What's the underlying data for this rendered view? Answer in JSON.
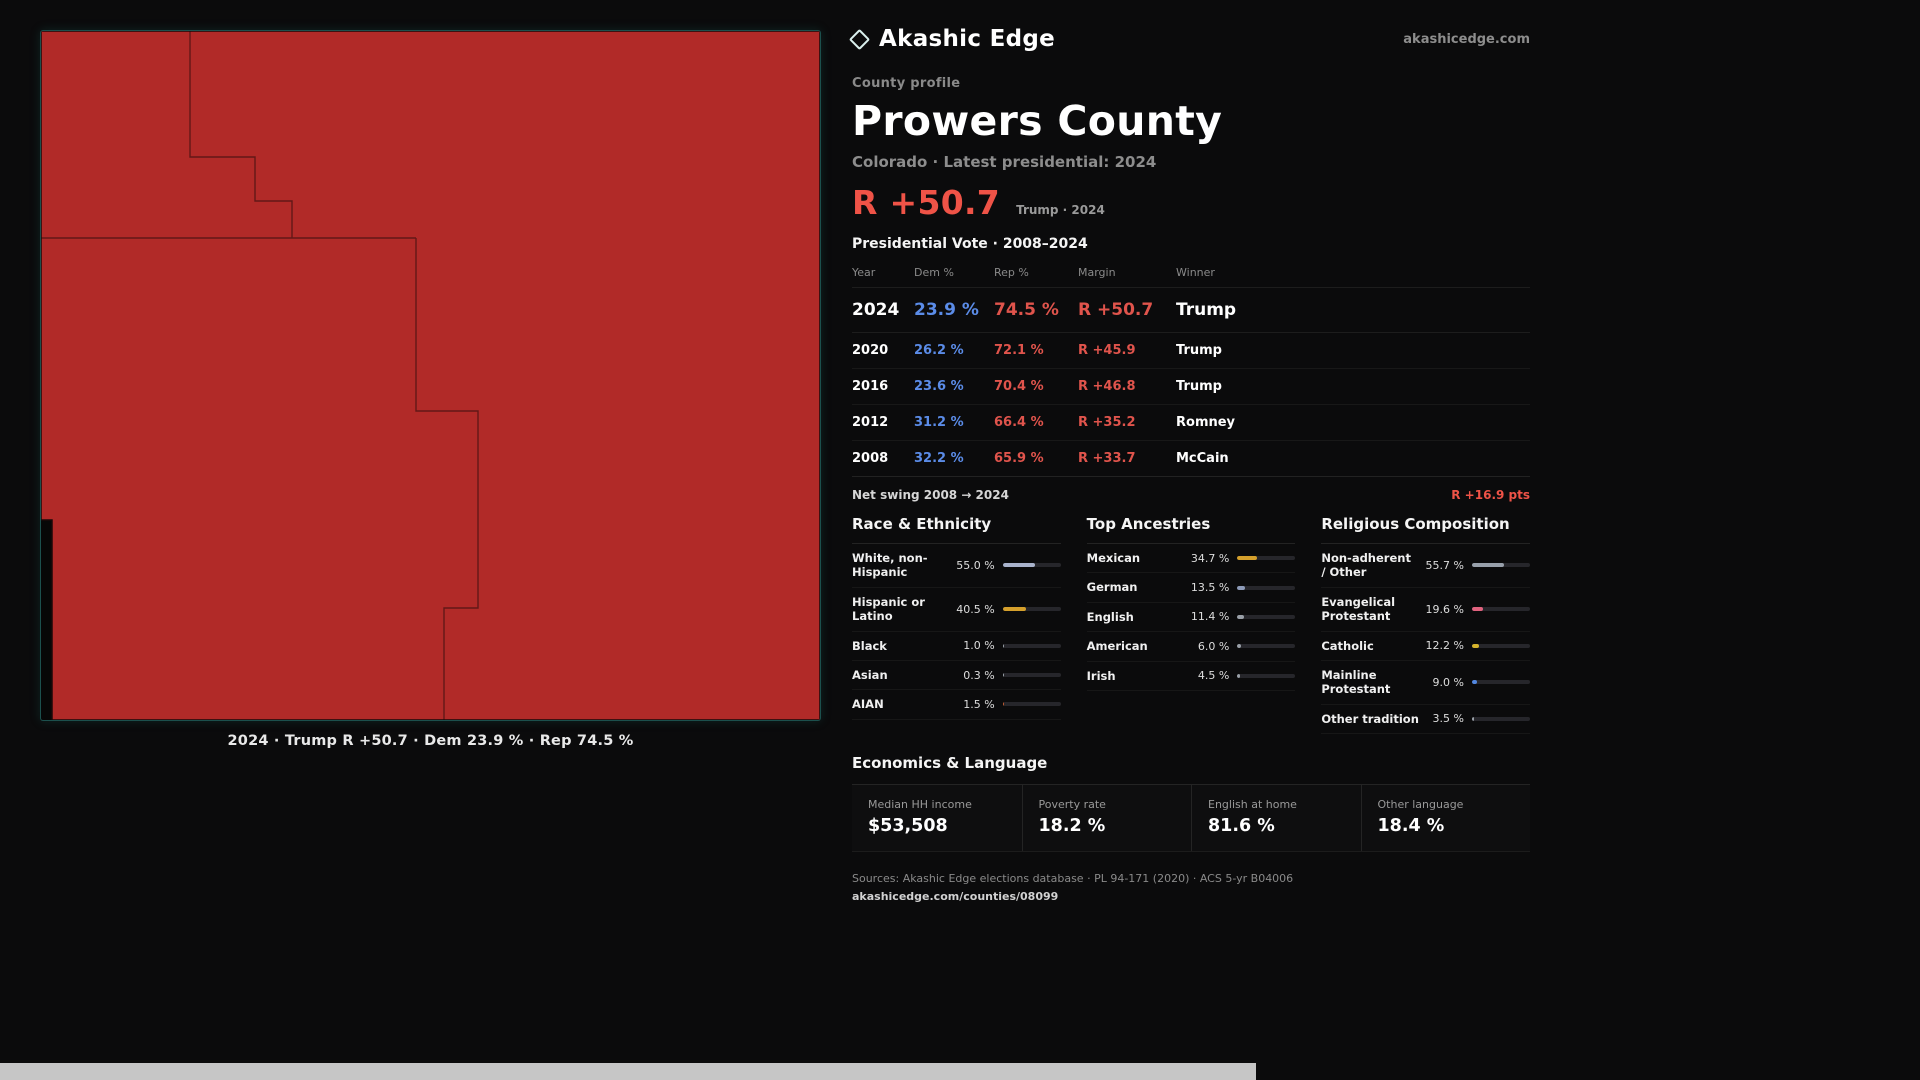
{
  "colors": {
    "bg": "#0b0b0c",
    "map_fill": "#b12a28",
    "map_line": "#200a0a",
    "dem_blue": "#5b8ce8",
    "rep_red": "#ef5347"
  },
  "header": {
    "brand": "Akashic Edge",
    "domain": "akashicedge.com"
  },
  "profile": {
    "kicker": "County profile",
    "title": "Prowers County",
    "subtitle": "Colorado · Latest presidential: 2024",
    "big_margin": "R +50.7",
    "big_margin_context": "Trump · 2024"
  },
  "map": {
    "caption": "2024 · Trump  R +50.7 · Dem 23.9 % · Rep 74.5 %"
  },
  "vote_table": {
    "title": "Presidential Vote · 2008–2024",
    "columns": [
      "Year",
      "Dem %",
      "Rep %",
      "Margin",
      "Winner"
    ],
    "rows": [
      {
        "year": "2024",
        "dem": "23.9 %",
        "rep": "74.5 %",
        "margin": "R +50.7",
        "winner": "Trump"
      },
      {
        "year": "2020",
        "dem": "26.2 %",
        "rep": "72.1 %",
        "margin": "R +45.9",
        "winner": "Trump"
      },
      {
        "year": "2016",
        "dem": "23.6 %",
        "rep": "70.4 %",
        "margin": "R +46.8",
        "winner": "Trump"
      },
      {
        "year": "2012",
        "dem": "31.2 %",
        "rep": "66.4 %",
        "margin": "R +35.2",
        "winner": "Romney"
      },
      {
        "year": "2008",
        "dem": "32.2 %",
        "rep": "65.9 %",
        "margin": "R +33.7",
        "winner": "McCain"
      }
    ],
    "net_swing_label": "Net swing 2008 → 2024",
    "net_swing_value": "R +16.9 pts"
  },
  "sections": {
    "race": {
      "title": "Race & Ethnicity",
      "items": [
        {
          "label": "White, non-Hispanic",
          "value": "55.0 %",
          "pct": 55.0,
          "color": "#a9b3cc"
        },
        {
          "label": "Hispanic or Latino",
          "value": "40.5 %",
          "pct": 40.5,
          "color": "#d5a02c"
        },
        {
          "label": "Black",
          "value": "1.0 %",
          "pct": 1.0,
          "color": "#9aa0a8"
        },
        {
          "label": "Asian",
          "value": "0.3 %",
          "pct": 0.3,
          "color": "#9aa0a8"
        },
        {
          "label": "AIAN",
          "value": "1.5 %",
          "pct": 1.5,
          "color": "#c05a30"
        }
      ]
    },
    "ancestries": {
      "title": "Top Ancestries",
      "items": [
        {
          "label": "Mexican",
          "value": "34.7 %",
          "pct": 34.7,
          "color": "#d5a02c"
        },
        {
          "label": "German",
          "value": "13.5 %",
          "pct": 13.5,
          "color": "#8d9bb8"
        },
        {
          "label": "English",
          "value": "11.4 %",
          "pct": 11.4,
          "color": "#9aa0a8"
        },
        {
          "label": "American",
          "value": "6.0 %",
          "pct": 6.0,
          "color": "#9aa0a8"
        },
        {
          "label": "Irish",
          "value": "4.5 %",
          "pct": 4.5,
          "color": "#9aa0a8"
        }
      ]
    },
    "religion": {
      "title": "Religious Composition",
      "items": [
        {
          "label": "Non-adherent / Other",
          "value": "55.7 %",
          "pct": 55.7,
          "color": "#98a0ab"
        },
        {
          "label": "Evangelical Protestant",
          "value": "19.6 %",
          "pct": 19.6,
          "color": "#e2637f"
        },
        {
          "label": "Catholic",
          "value": "12.2 %",
          "pct": 12.2,
          "color": "#d6b42c"
        },
        {
          "label": "Mainline Protestant",
          "value": "9.0 %",
          "pct": 9.0,
          "color": "#5287e0"
        },
        {
          "label": "Other tradition",
          "value": "3.5 %",
          "pct": 3.5,
          "color": "#9aa0a8"
        }
      ]
    }
  },
  "economics": {
    "title": "Economics & Language",
    "stats": [
      {
        "label": "Median HH income",
        "value": "$53,508"
      },
      {
        "label": "Poverty rate",
        "value": "18.2 %"
      },
      {
        "label": "English at home",
        "value": "81.6 %"
      },
      {
        "label": "Other language",
        "value": "18.4 %"
      }
    ]
  },
  "footer": {
    "sources": "Sources: Akashic Edge elections database · PL 94-171 (2020) · ACS 5-yr B04006",
    "permalink": "akashicedge.com/counties/08099"
  }
}
